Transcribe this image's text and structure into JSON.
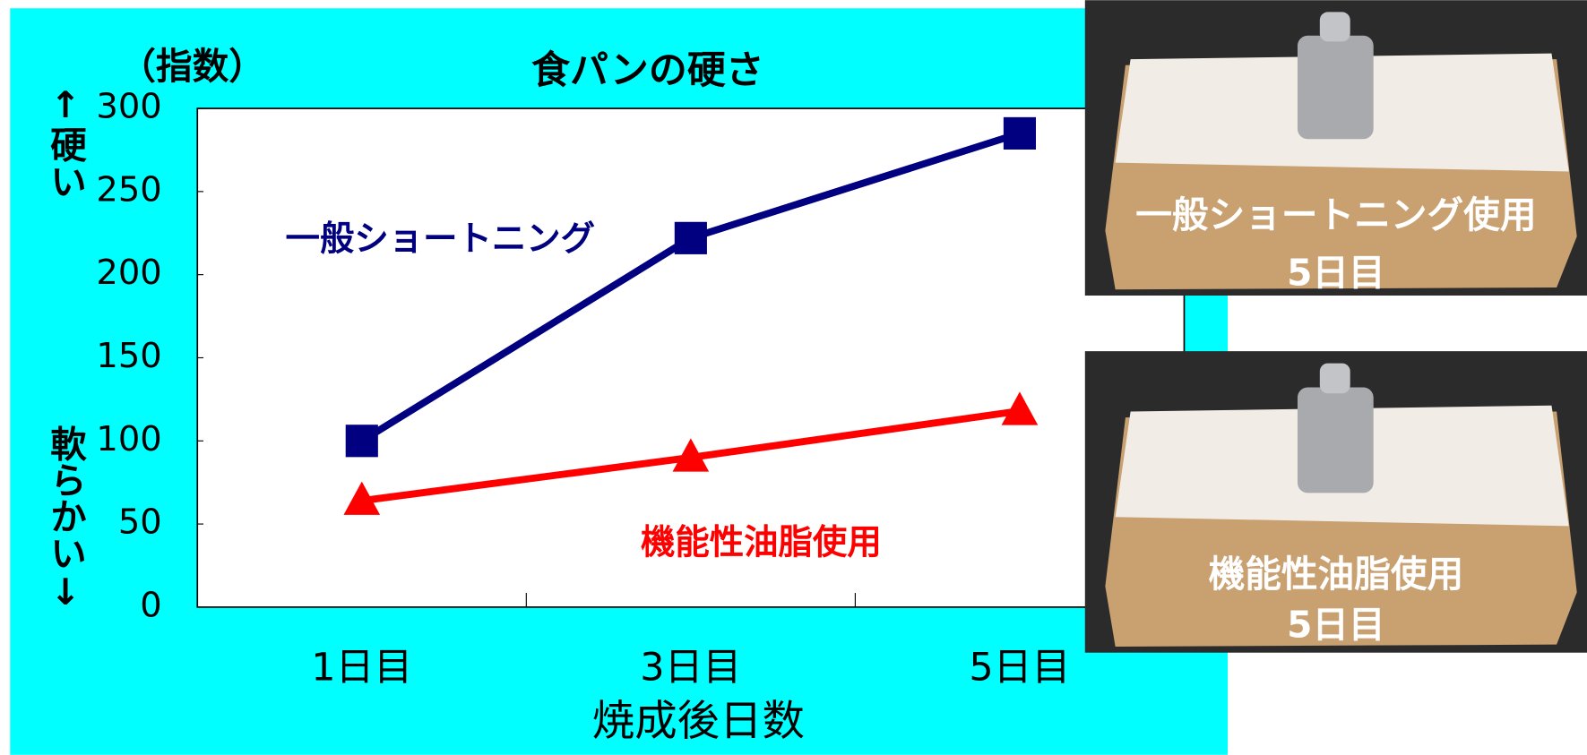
{
  "chart_data": {
    "type": "line",
    "title": "食パンの硬さ",
    "y_unit_label": "（指数）",
    "y_label_top": "↑硬い",
    "y_label_bottom": "軟らかい↓",
    "x_label": "焼成後日数",
    "categories": [
      "1日目",
      "3日目",
      "5日目"
    ],
    "ylim": [
      0,
      300
    ],
    "yticks": [
      0,
      50,
      100,
      150,
      200,
      250,
      300
    ],
    "series": [
      {
        "name": "一般ショートニング",
        "color": "#000080",
        "marker": "square",
        "values": [
          100,
          222,
          285
        ]
      },
      {
        "name": "機能性油脂使用",
        "color": "#ff0000",
        "marker": "triangle",
        "values": [
          64,
          90,
          118
        ]
      }
    ]
  },
  "photos": [
    {
      "caption": [
        "一般ショートニング使用",
        "5日目"
      ]
    },
    {
      "caption": [
        "機能性油脂使用",
        "5日目"
      ]
    }
  ]
}
